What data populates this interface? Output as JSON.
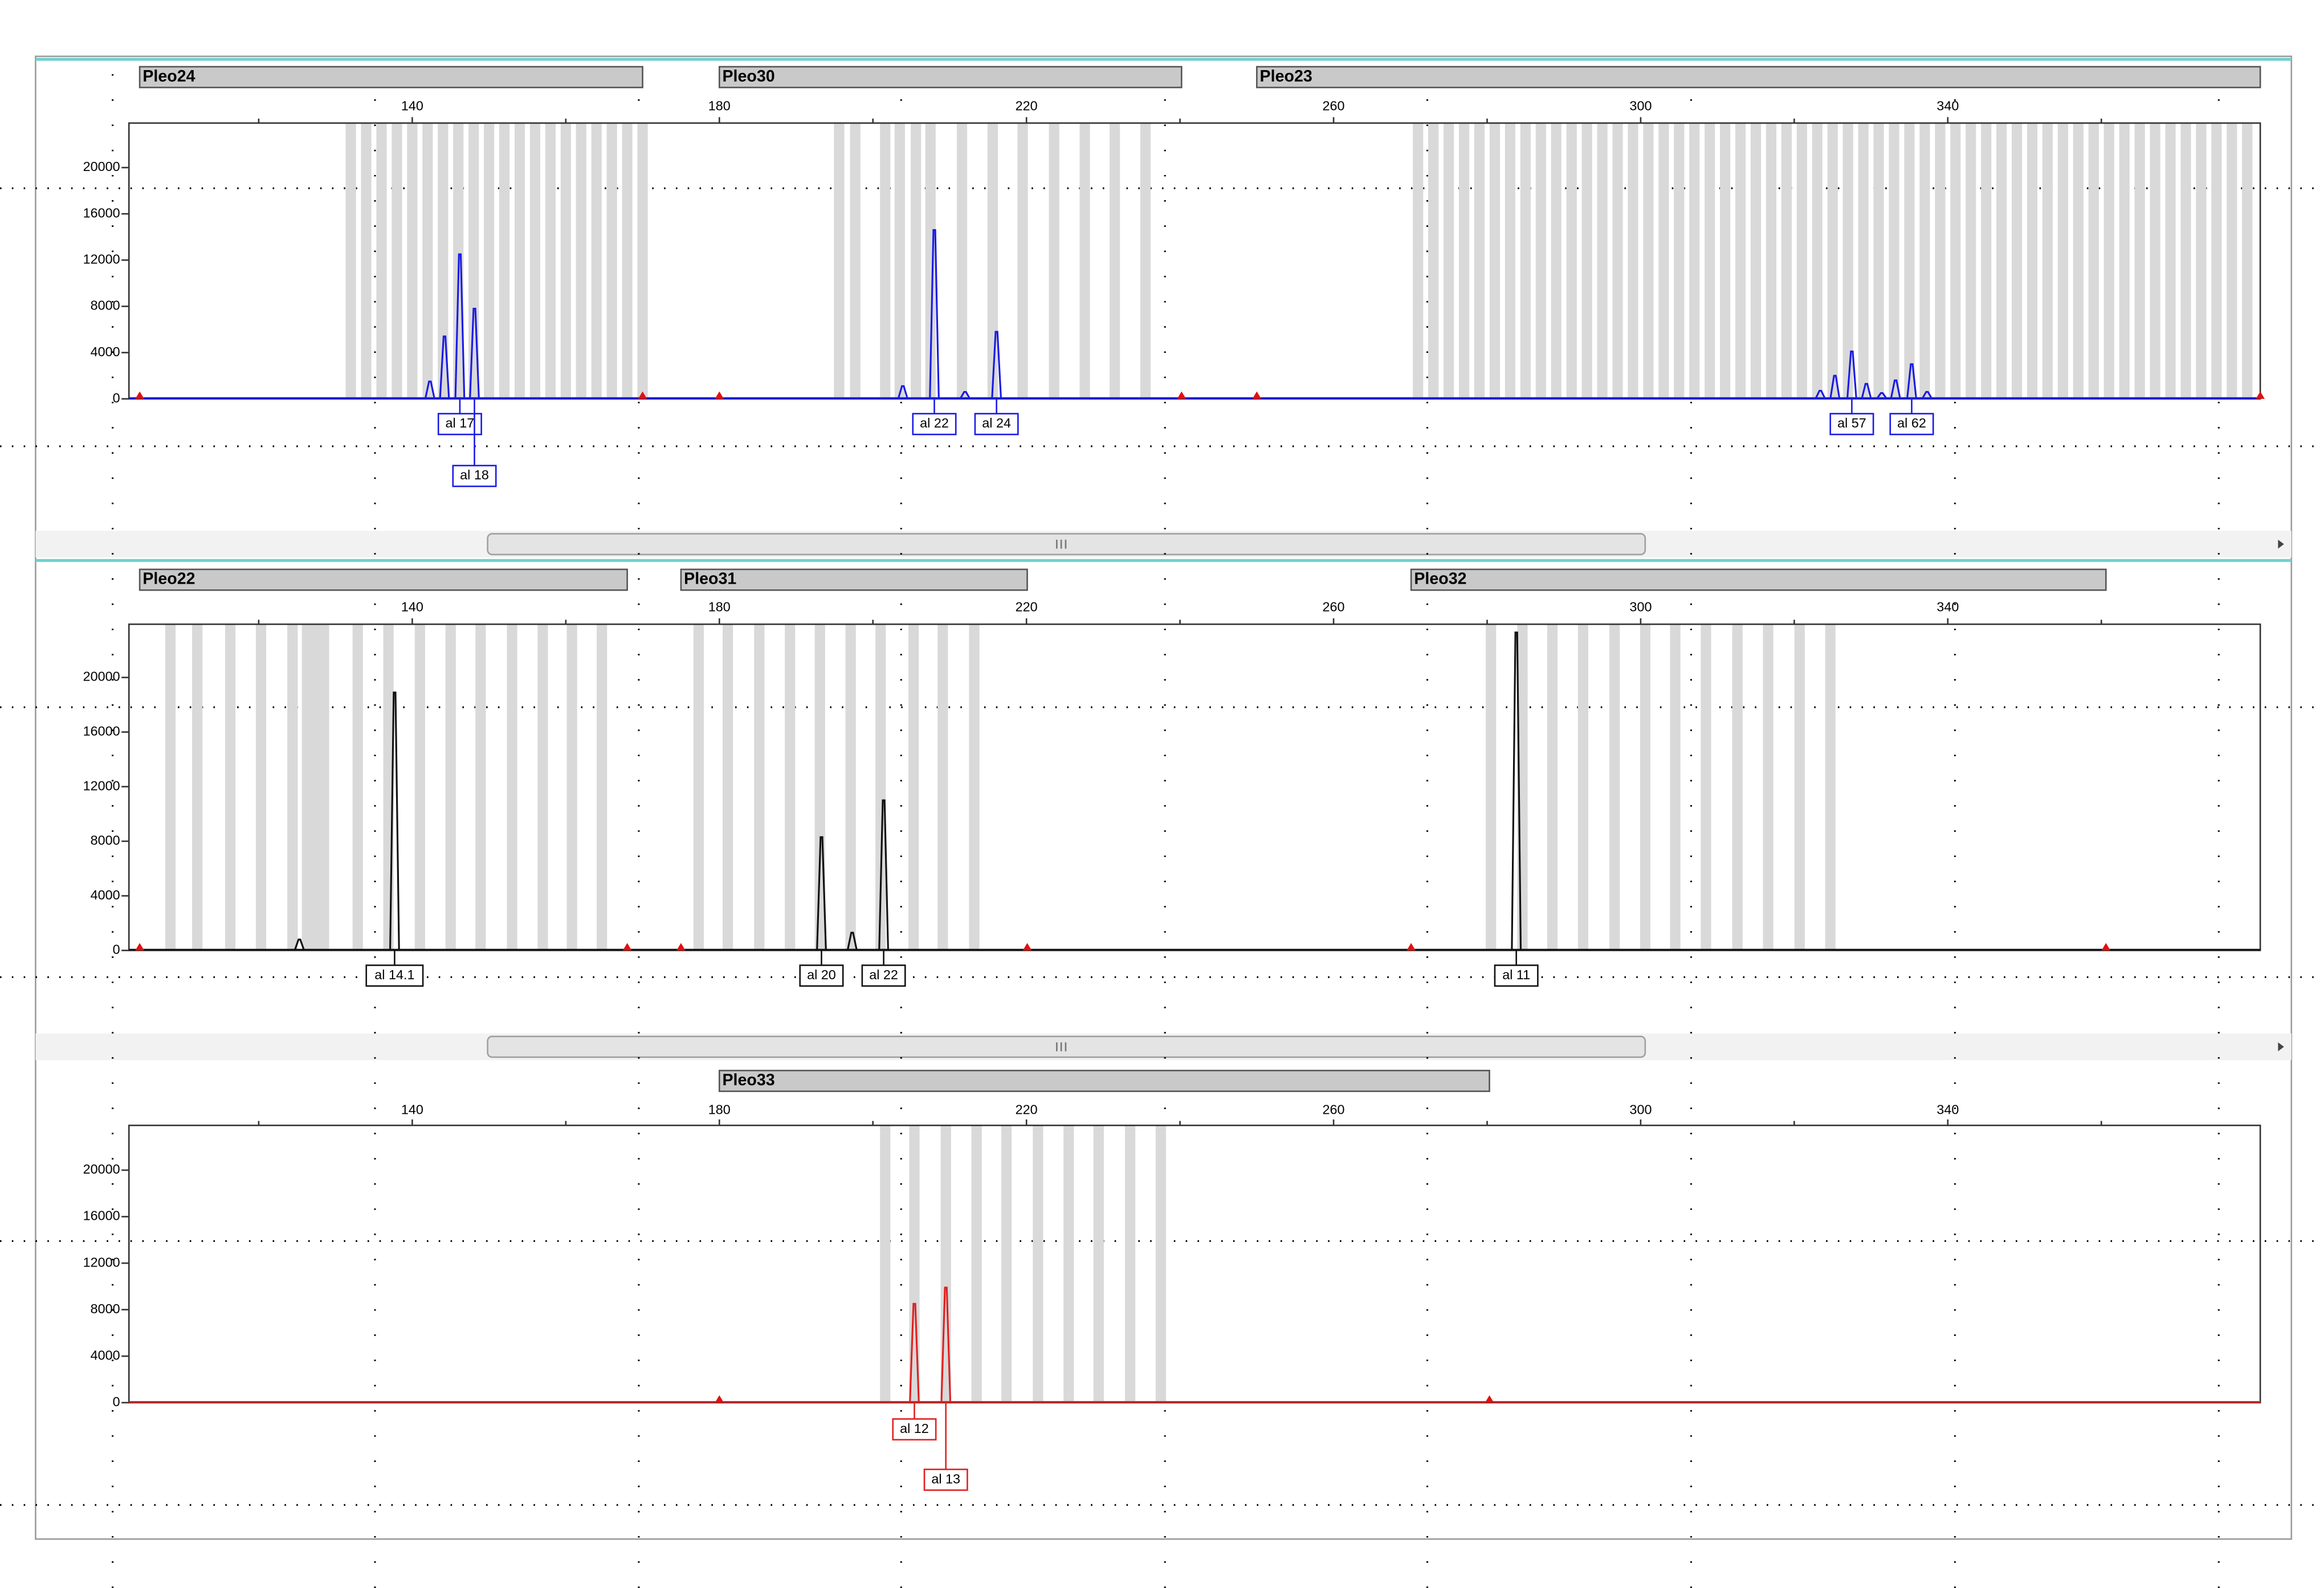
{
  "chart_data": [
    {
      "type": "line",
      "xlim": [
        103.1,
        380.7
      ],
      "xticks": [
        140,
        180,
        220,
        260,
        300,
        340
      ],
      "xminor": [
        120,
        160,
        200,
        240,
        280,
        320,
        360
      ],
      "ylim": [
        0,
        23850
      ],
      "yticks": [
        0,
        4000,
        8000,
        12000,
        16000,
        20000
      ],
      "markers": [
        {
          "name": "Pleo24",
          "range": [
            104.5,
            170
          ],
          "bins": [
            132,
            134,
            136,
            138,
            140,
            142,
            144,
            146,
            148,
            150,
            152,
            154,
            156,
            158,
            160,
            162,
            164,
            166,
            168,
            170
          ]
        },
        {
          "name": "Pleo30",
          "range": [
            180,
            240.2
          ],
          "bins": [
            195.6,
            197.7,
            201.6,
            203.5,
            205.6,
            207.5,
            211.6,
            215.6,
            219.5,
            223.6,
            227.6,
            231.5,
            235.5
          ]
        },
        {
          "name": "Pleo23",
          "range": [
            250,
            380.7
          ],
          "bins": [
            271,
            273,
            275,
            277,
            279,
            281,
            283,
            285,
            287,
            289,
            291,
            293,
            295,
            297,
            299,
            301,
            303,
            305,
            307,
            309,
            311,
            313,
            315,
            317,
            319,
            321,
            323,
            325,
            327,
            329,
            331,
            333,
            335,
            337,
            339,
            341,
            343,
            345,
            347,
            349,
            351,
            353,
            355,
            357,
            359,
            361,
            363,
            365,
            367,
            369,
            371,
            373,
            375,
            377,
            379
          ]
        }
      ],
      "series": [
        {
          "color": "#1a1ae6",
          "x": [
            142.3,
            144.2,
            146.2,
            148.1,
            203.9,
            208,
            212,
            216.1,
            323.4,
            325.3,
            327.5,
            329.4,
            331.4,
            333.2,
            335.3,
            337.3
          ],
          "values": [
            1500,
            5400,
            12500,
            7800,
            1100,
            14600,
            600,
            5800,
            700,
            2000,
            4100,
            1300,
            500,
            1600,
            3000,
            600
          ]
        }
      ],
      "alleles": [
        {
          "label": "al 17",
          "x": 146.2
        },
        {
          "label": "al 18",
          "x": 148.1
        },
        {
          "label": "al 22",
          "x": 208
        },
        {
          "label": "al 24",
          "x": 216.1
        },
        {
          "label": "al 57",
          "x": 327.5
        },
        {
          "label": "al 62",
          "x": 335.3
        }
      ]
    },
    {
      "type": "line",
      "xlim": [
        103.1,
        380.7
      ],
      "xticks": [
        140,
        180,
        220,
        260,
        300,
        340
      ],
      "xminor": [
        120,
        160,
        200,
        240,
        280,
        320,
        360
      ],
      "ylim": [
        0,
        23900
      ],
      "yticks": [
        0,
        4000,
        8000,
        12000,
        16000,
        20000
      ],
      "markers": [
        {
          "name": "Pleo22",
          "range": [
            104.5,
            168
          ],
          "bins": [
            108.5,
            112,
            116.3,
            120.3,
            124.4,
            126.3,
            127.5,
            128.5,
            132.9,
            136.9,
            141,
            145,
            148.9,
            153,
            157,
            160.8,
            164.7
          ]
        },
        {
          "name": "Pleo31",
          "range": [
            175,
            220.1
          ],
          "bins": [
            177.3,
            181.1,
            185.2,
            189.2,
            193.1,
            197.1,
            201,
            205.3,
            209.1,
            213.2
          ]
        },
        {
          "name": "Pleo32",
          "range": [
            270.1,
            360.6
          ],
          "bins": [
            280.5,
            284.6,
            288.5,
            292.5,
            296.6,
            300.6,
            304.5,
            308.5,
            312.6,
            316.6,
            320.7,
            324.7
          ]
        }
      ],
      "series": [
        {
          "color": "#111111",
          "x": [
            125.3,
            137.7,
            193.3,
            197.3,
            201.4,
            283.8
          ],
          "values": [
            800,
            18900,
            8300,
            1300,
            11000,
            23300
          ]
        }
      ],
      "alleles": [
        {
          "label": "al 14.1",
          "x": 137.7
        },
        {
          "label": "al 20",
          "x": 193.3
        },
        {
          "label": "al 22",
          "x": 201.4
        },
        {
          "label": "al 11",
          "x": 283.8
        }
      ]
    },
    {
      "type": "line",
      "xlim": [
        103.1,
        380.7
      ],
      "xticks": [
        140,
        180,
        220,
        260,
        300,
        340
      ],
      "xminor": [
        120,
        160,
        200,
        240,
        280,
        320,
        360
      ],
      "ylim": [
        0,
        23850
      ],
      "yticks": [
        0,
        4000,
        8000,
        12000,
        16000,
        20000
      ],
      "markers": [
        {
          "name": "Pleo33",
          "range": [
            180,
            280.3
          ],
          "bins": [
            201.6,
            205.4,
            209.5,
            213.5,
            217.4,
            221.5,
            225.5,
            229.4,
            233.5,
            237.5
          ]
        }
      ],
      "series": [
        {
          "color": "#e02020",
          "x": [
            205.4,
            209.5
          ],
          "values": [
            8500,
            9900
          ]
        }
      ],
      "alleles": [
        {
          "label": "al 12",
          "x": 205.4
        },
        {
          "label": "al 13",
          "x": 209.5
        }
      ]
    }
  ]
}
